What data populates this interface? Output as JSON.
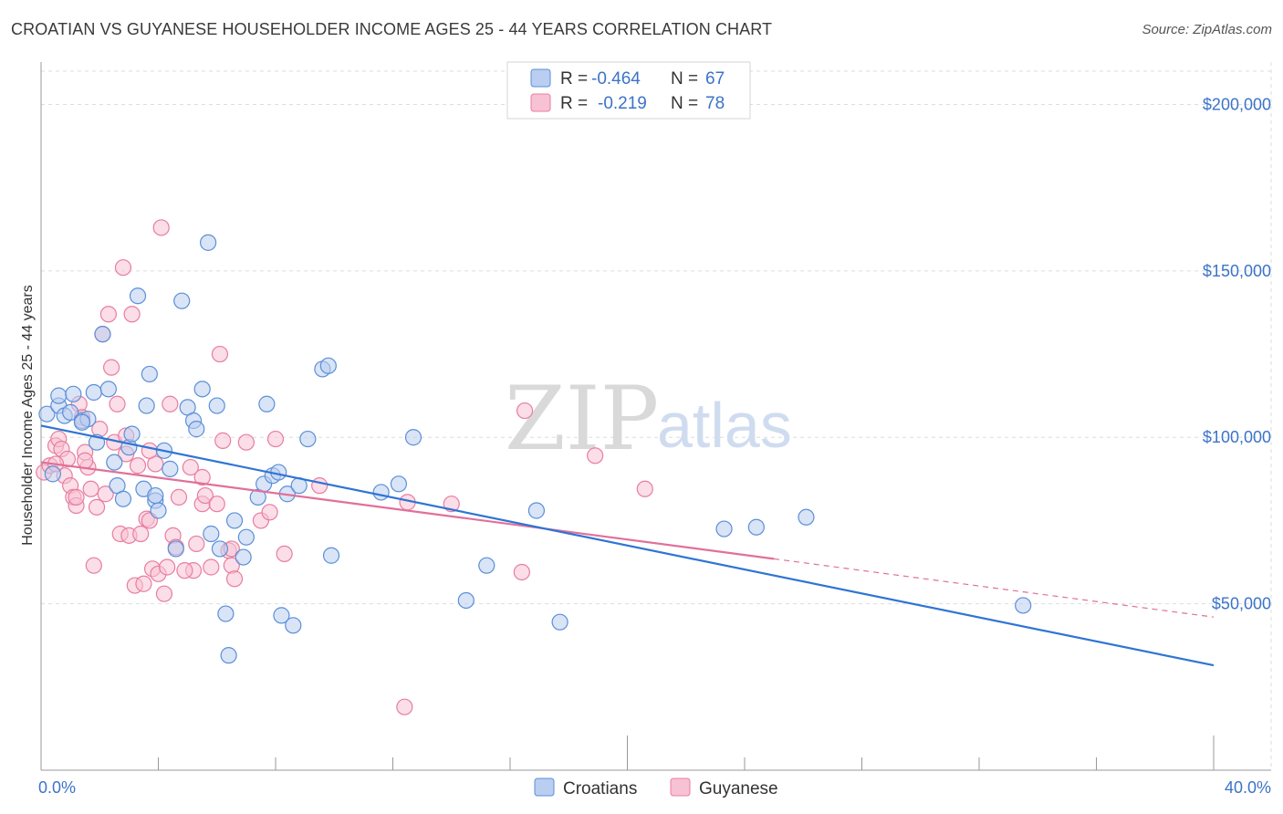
{
  "header": {
    "title": "CROATIAN VS GUYANESE HOUSEHOLDER INCOME AGES 25 - 44 YEARS CORRELATION CHART",
    "source": "Source: ZipAtlas.com"
  },
  "watermark": {
    "zip": "ZIP",
    "atlas": "atlas"
  },
  "colors": {
    "blue": "#5b8fd8",
    "blueFill": "#b9cef0",
    "blueLine": "#2f74d4",
    "pink": "#e87da0",
    "pinkFill": "#f7c2d3",
    "pinkLine": "#e0709a",
    "grid": "#dddddd",
    "axisText": "#3b73c8"
  },
  "legend": {
    "r_label": "R =",
    "n_label": "N =",
    "rows": [
      {
        "series": "Croatians",
        "r": "-0.464",
        "n": "67"
      },
      {
        "series": "Guyanese",
        "r": "-0.219",
        "n": "78"
      }
    ]
  },
  "bottom_legend": [
    "Croatians",
    "Guyanese"
  ],
  "chart_data": {
    "type": "scatter",
    "title": "CROATIAN VS GUYANESE HOUSEHOLDER INCOME AGES 25 - 44 YEARS CORRELATION CHART",
    "xlabel": "",
    "ylabel": "Householder Income Ages 25 - 44 years",
    "xlim": [
      0,
      40
    ],
    "ylim": [
      0,
      210000
    ],
    "x_tick_labels": [
      "0.0%",
      "40.0%"
    ],
    "y_ticks": [
      50000,
      100000,
      150000,
      200000
    ],
    "y_tick_labels": [
      "$50,000",
      "$100,000",
      "$150,000",
      "$200,000"
    ],
    "grid": true,
    "series": [
      {
        "name": "Croatians",
        "r": -0.464,
        "n": 67,
        "trend": {
          "x": [
            0,
            40
          ],
          "y": [
            103500,
            31500
          ]
        },
        "points": [
          [
            0.2,
            107000
          ],
          [
            0.6,
            109500
          ],
          [
            0.6,
            112500
          ],
          [
            0.8,
            106500
          ],
          [
            1.1,
            113000
          ],
          [
            1.0,
            107500
          ],
          [
            1.4,
            105000
          ],
          [
            1.6,
            105500
          ],
          [
            1.8,
            113500
          ],
          [
            1.9,
            98500
          ],
          [
            2.3,
            114500
          ],
          [
            2.5,
            92500
          ],
          [
            2.6,
            85500
          ],
          [
            2.8,
            81500
          ],
          [
            3.0,
            97000
          ],
          [
            3.1,
            101000
          ],
          [
            3.3,
            142500
          ],
          [
            3.5,
            84500
          ],
          [
            3.6,
            109500
          ],
          [
            3.7,
            119000
          ],
          [
            3.9,
            81000
          ],
          [
            4.0,
            78000
          ],
          [
            4.2,
            96000
          ],
          [
            4.4,
            90500
          ],
          [
            4.6,
            66500
          ],
          [
            4.8,
            141000
          ],
          [
            5.0,
            109000
          ],
          [
            5.2,
            105000
          ],
          [
            5.3,
            102500
          ],
          [
            5.5,
            114500
          ],
          [
            5.7,
            158500
          ],
          [
            5.8,
            71000
          ],
          [
            6.0,
            109500
          ],
          [
            6.1,
            66500
          ],
          [
            6.3,
            47000
          ],
          [
            6.4,
            34500
          ],
          [
            6.6,
            75000
          ],
          [
            6.9,
            64000
          ],
          [
            7.0,
            70000
          ],
          [
            7.4,
            82000
          ],
          [
            7.6,
            86000
          ],
          [
            7.7,
            110000
          ],
          [
            7.9,
            88500
          ],
          [
            8.1,
            89500
          ],
          [
            8.2,
            46500
          ],
          [
            8.4,
            83000
          ],
          [
            8.6,
            43500
          ],
          [
            8.8,
            85500
          ],
          [
            9.1,
            99500
          ],
          [
            9.6,
            120500
          ],
          [
            9.8,
            121500
          ],
          [
            9.9,
            64500
          ],
          [
            11.6,
            83500
          ],
          [
            12.2,
            86000
          ],
          [
            12.7,
            100000
          ],
          [
            14.5,
            51000
          ],
          [
            15.2,
            61500
          ],
          [
            16.9,
            78000
          ],
          [
            17.7,
            44500
          ],
          [
            23.3,
            72500
          ],
          [
            24.4,
            73000
          ],
          [
            26.1,
            76000
          ],
          [
            33.5,
            49500
          ],
          [
            1.4,
            104500
          ],
          [
            2.1,
            131000
          ],
          [
            0.4,
            89000
          ],
          [
            3.9,
            82500
          ]
        ]
      },
      {
        "name": "Guyanese",
        "r": -0.219,
        "n": 78,
        "trend": {
          "x": [
            0,
            25
          ],
          "y": [
            92500,
            63500
          ]
        },
        "trend_dashed": {
          "x": [
            25,
            40
          ],
          "y": [
            63500,
            46000
          ]
        },
        "points": [
          [
            0.1,
            89500
          ],
          [
            0.3,
            91500
          ],
          [
            0.5,
            97500
          ],
          [
            0.6,
            99500
          ],
          [
            0.7,
            96500
          ],
          [
            0.8,
            88500
          ],
          [
            0.9,
            93500
          ],
          [
            1.0,
            85500
          ],
          [
            1.1,
            82000
          ],
          [
            1.2,
            79500
          ],
          [
            1.3,
            110000
          ],
          [
            1.4,
            106000
          ],
          [
            1.5,
            95500
          ],
          [
            1.6,
            91000
          ],
          [
            1.7,
            84500
          ],
          [
            1.8,
            61500
          ],
          [
            1.9,
            79000
          ],
          [
            2.0,
            102500
          ],
          [
            2.1,
            131000
          ],
          [
            2.2,
            83000
          ],
          [
            2.3,
            137000
          ],
          [
            2.4,
            121000
          ],
          [
            2.5,
            98500
          ],
          [
            2.6,
            110000
          ],
          [
            2.7,
            71000
          ],
          [
            2.8,
            151000
          ],
          [
            2.9,
            100500
          ],
          [
            3.0,
            70500
          ],
          [
            3.1,
            137000
          ],
          [
            3.2,
            55500
          ],
          [
            3.3,
            91500
          ],
          [
            3.4,
            71000
          ],
          [
            3.5,
            56000
          ],
          [
            3.6,
            75500
          ],
          [
            3.7,
            75000
          ],
          [
            3.8,
            60500
          ],
          [
            3.9,
            92000
          ],
          [
            4.0,
            59000
          ],
          [
            4.1,
            163000
          ],
          [
            4.2,
            53000
          ],
          [
            4.3,
            61000
          ],
          [
            4.4,
            110000
          ],
          [
            4.5,
            70500
          ],
          [
            4.6,
            67000
          ],
          [
            4.7,
            82000
          ],
          [
            5.1,
            91000
          ],
          [
            5.2,
            60000
          ],
          [
            5.3,
            68000
          ],
          [
            5.5,
            80000
          ],
          [
            5.6,
            82500
          ],
          [
            5.8,
            61000
          ],
          [
            6.0,
            80000
          ],
          [
            6.1,
            125000
          ],
          [
            6.2,
            99000
          ],
          [
            6.4,
            66000
          ],
          [
            6.5,
            61500
          ],
          [
            6.6,
            57500
          ],
          [
            7.0,
            98500
          ],
          [
            7.5,
            75000
          ],
          [
            7.8,
            77500
          ],
          [
            8.0,
            99500
          ],
          [
            8.3,
            65000
          ],
          [
            9.5,
            85500
          ],
          [
            12.5,
            80500
          ],
          [
            14.0,
            80000
          ],
          [
            16.5,
            108000
          ],
          [
            18.9,
            94500
          ],
          [
            20.6,
            84500
          ],
          [
            16.4,
            59500
          ],
          [
            12.4,
            19000
          ],
          [
            0.5,
            92000
          ],
          [
            1.5,
            93000
          ],
          [
            2.9,
            95000
          ],
          [
            5.5,
            88000
          ],
          [
            3.7,
            96000
          ],
          [
            1.2,
            82000
          ],
          [
            6.5,
            66500
          ],
          [
            4.9,
            60000
          ]
        ]
      }
    ]
  }
}
